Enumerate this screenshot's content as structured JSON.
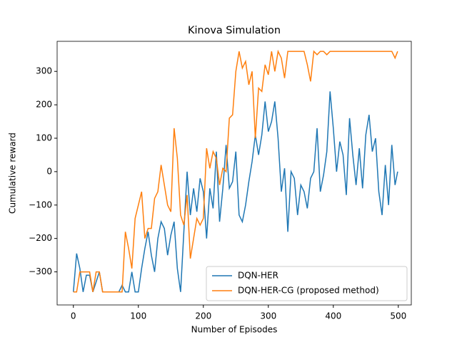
{
  "chart_data": {
    "type": "line",
    "title": "Kinova Simulation",
    "x_label": "Number of Episodes",
    "y_label": "Cumulative reward",
    "x": [
      0,
      5,
      10,
      15,
      20,
      25,
      30,
      35,
      40,
      45,
      50,
      55,
      60,
      65,
      70,
      75,
      80,
      85,
      90,
      95,
      100,
      105,
      110,
      115,
      120,
      125,
      130,
      135,
      140,
      145,
      150,
      155,
      160,
      165,
      170,
      175,
      180,
      185,
      190,
      195,
      200,
      205,
      210,
      215,
      220,
      225,
      230,
      235,
      240,
      245,
      250,
      255,
      260,
      265,
      270,
      275,
      280,
      285,
      290,
      295,
      300,
      305,
      310,
      315,
      320,
      325,
      330,
      335,
      340,
      345,
      350,
      355,
      360,
      365,
      370,
      375,
      380,
      385,
      390,
      395,
      400,
      405,
      410,
      415,
      420,
      425,
      430,
      435,
      440,
      445,
      450,
      455,
      460,
      465,
      470,
      475,
      480,
      485,
      490,
      495,
      499
    ],
    "series": [
      {
        "name": "DQN-HER",
        "color": "#1f77b4",
        "values": [
          -360,
          -245,
          -290,
          -360,
          -310,
          -310,
          -360,
          -330,
          -300,
          -360,
          -360,
          -360,
          -360,
          -360,
          -360,
          -340,
          -360,
          -360,
          -300,
          -360,
          -360,
          -290,
          -230,
          -180,
          -250,
          -300,
          -200,
          -150,
          -170,
          -250,
          -190,
          -150,
          -290,
          -360,
          -180,
          0,
          -130,
          -50,
          -120,
          -20,
          -60,
          -200,
          -50,
          -110,
          60,
          -150,
          -50,
          80,
          -50,
          -30,
          60,
          -130,
          -150,
          -100,
          -30,
          30,
          110,
          50,
          110,
          210,
          120,
          150,
          210,
          100,
          -60,
          10,
          -180,
          0,
          -20,
          -130,
          -40,
          -60,
          -110,
          -20,
          0,
          130,
          -60,
          -10,
          60,
          240,
          130,
          0,
          90,
          50,
          -70,
          160,
          50,
          -40,
          70,
          -50,
          110,
          170,
          60,
          100,
          -60,
          -130,
          20,
          -100,
          80,
          -40,
          0
        ]
      },
      {
        "name": "DQN-HER-CG (proposed method)",
        "color": "#ff7f0e",
        "values": [
          -360,
          -360,
          -300,
          -300,
          -300,
          -300,
          -360,
          -300,
          -300,
          -360,
          -360,
          -360,
          -360,
          -360,
          -360,
          -360,
          -180,
          -230,
          -290,
          -140,
          -100,
          -60,
          -200,
          -170,
          -170,
          -80,
          -60,
          20,
          -40,
          -100,
          -120,
          130,
          40,
          -130,
          -160,
          -70,
          -260,
          -200,
          -140,
          -160,
          -140,
          70,
          10,
          60,
          40,
          -40,
          10,
          0,
          160,
          170,
          300,
          360,
          310,
          330,
          260,
          300,
          100,
          250,
          240,
          320,
          290,
          360,
          300,
          360,
          340,
          280,
          360,
          360,
          360,
          360,
          360,
          360,
          320,
          270,
          360,
          350,
          360,
          360,
          350,
          360,
          360,
          360,
          360,
          360,
          360,
          360,
          360,
          360,
          360,
          360,
          360,
          360,
          360,
          360,
          360,
          360,
          360,
          360,
          360,
          340,
          360
        ]
      }
    ],
    "xlim": [
      -25,
      520
    ],
    "ylim": [
      -399,
      390
    ],
    "xticks": [
      0,
      100,
      200,
      300,
      400,
      500
    ],
    "yticks": [
      {
        "value": -300,
        "label": "−300"
      },
      {
        "value": -200,
        "label": "−200"
      },
      {
        "value": -100,
        "label": "−100"
      },
      0,
      100,
      200,
      300
    ],
    "legend": "lower right"
  }
}
